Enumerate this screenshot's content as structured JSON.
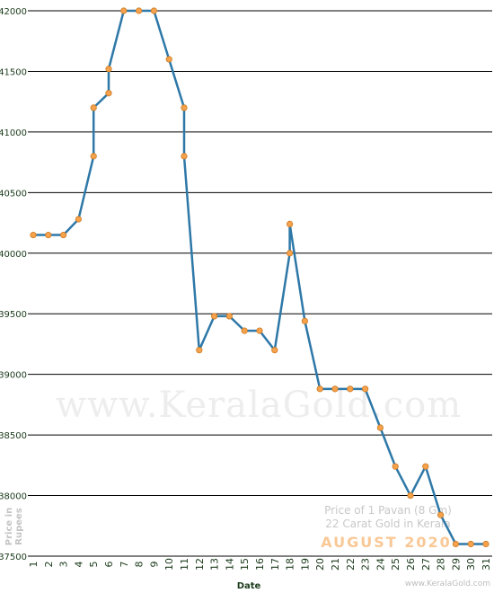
{
  "chart_data": {
    "type": "line",
    "xlabel": "Date",
    "ylabel_lines": [
      "Price in",
      "Rupees"
    ],
    "ylim": [
      37500,
      42000
    ],
    "yticks": [
      37500,
      38000,
      38500,
      39000,
      39500,
      40000,
      40500,
      41000,
      41500,
      42000
    ],
    "grid": true,
    "categories": [
      "1",
      "2",
      "3",
      "4",
      "5",
      "6",
      "7",
      "8",
      "9",
      "10",
      "11",
      "12",
      "13",
      "14",
      "15",
      "16",
      "17",
      "18",
      "19",
      "20",
      "21",
      "22",
      "23",
      "24",
      "25",
      "26",
      "27",
      "28",
      "29",
      "30",
      "31"
    ],
    "points": [
      {
        "x": 1,
        "y": 40150
      },
      {
        "x": 2,
        "y": 40150
      },
      {
        "x": 3,
        "y": 40150
      },
      {
        "x": 4,
        "y": 40280
      },
      {
        "x": 5,
        "y": 40800
      },
      {
        "x": 5,
        "y": 41200
      },
      {
        "x": 6,
        "y": 41320
      },
      {
        "x": 6,
        "y": 41520
      },
      {
        "x": 7,
        "y": 42000
      },
      {
        "x": 8,
        "y": 42000
      },
      {
        "x": 9,
        "y": 42000
      },
      {
        "x": 10,
        "y": 41600
      },
      {
        "x": 11,
        "y": 41200
      },
      {
        "x": 11,
        "y": 40800
      },
      {
        "x": 12,
        "y": 39200
      },
      {
        "x": 13,
        "y": 39480
      },
      {
        "x": 14,
        "y": 39480
      },
      {
        "x": 15,
        "y": 39360
      },
      {
        "x": 16,
        "y": 39360
      },
      {
        "x": 17,
        "y": 39200
      },
      {
        "x": 18,
        "y": 40000
      },
      {
        "x": 18,
        "y": 40240
      },
      {
        "x": 19,
        "y": 39440
      },
      {
        "x": 20,
        "y": 38880
      },
      {
        "x": 21,
        "y": 38880
      },
      {
        "x": 22,
        "y": 38880
      },
      {
        "x": 23,
        "y": 38880
      },
      {
        "x": 24,
        "y": 38560
      },
      {
        "x": 25,
        "y": 38240
      },
      {
        "x": 26,
        "y": 38000
      },
      {
        "x": 27,
        "y": 38240
      },
      {
        "x": 28,
        "y": 37840
      },
      {
        "x": 29,
        "y": 37600
      },
      {
        "x": 30,
        "y": 37600
      },
      {
        "x": 31,
        "y": 37600
      }
    ],
    "watermark": "www.KeralaGold.com",
    "caption_line1": "Price of 1 Pavan (8 Gm)",
    "caption_line2": "22 Carat Gold in Kerala",
    "month_label": "AUGUST 2020",
    "site_credit": "www.KeralaGold.com",
    "colors": {
      "line": "#2e78a8",
      "marker_fill": "#f6a24c",
      "marker_stroke": "#cc7a22",
      "grid": "#000000",
      "month": "#f9c896"
    }
  }
}
